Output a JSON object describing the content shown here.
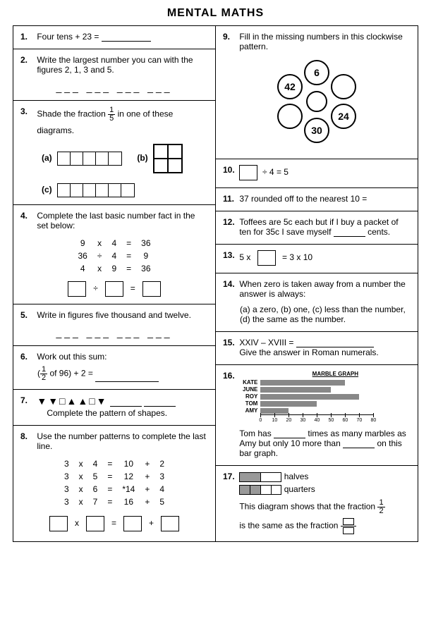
{
  "title": "MENTAL MATHS",
  "q1": {
    "num": "1.",
    "text": "Four tens + 23 ="
  },
  "q2": {
    "num": "2.",
    "text": "Write the largest number you can with the figures 2, 1, 3 and 5."
  },
  "q3": {
    "num": "3.",
    "part1": "Shade the fraction",
    "frac_num": "1",
    "frac_den": "5",
    "part2": "in one of these",
    "part3": "diagrams.",
    "a": "(a)",
    "b": "(b)",
    "c": "(c)"
  },
  "q4": {
    "num": "4.",
    "text": "Complete the last basic number fact in the set below:",
    "r1": [
      "9",
      "x",
      "4",
      "=",
      "36"
    ],
    "r2": [
      "36",
      "÷",
      "4",
      "=",
      "9"
    ],
    "r3": [
      "4",
      "x",
      "9",
      "=",
      "36"
    ]
  },
  "q5": {
    "num": "5.",
    "text": "Write in figures five thousand and twelve."
  },
  "q6": {
    "num": "6.",
    "text": "Work out this sum:",
    "expr_open": "(",
    "frac_num": "1",
    "frac_den": "2",
    "expr_mid": " of 96) + 2  ="
  },
  "q7": {
    "num": "7.",
    "shapes": "▼▼□▲▲□▼",
    "text": "Complete the pattern of shapes."
  },
  "q8": {
    "num": "8.",
    "text": "Use the number patterns to complete the last line.",
    "rows": [
      [
        "3",
        "x",
        "4",
        "=",
        "10",
        "+",
        "2"
      ],
      [
        "3",
        "x",
        "5",
        "=",
        "12",
        "+",
        "3"
      ],
      [
        "3",
        "x",
        "6",
        "=",
        "*14",
        "+",
        "4"
      ],
      [
        "3",
        "x",
        "7",
        "=",
        "16",
        "+",
        "5"
      ]
    ]
  },
  "q9": {
    "num": "9.",
    "text": "Fill in the missing numbers in this clockwise pattern.",
    "vals": [
      "6",
      "42",
      "30",
      "24"
    ]
  },
  "q10": {
    "num": "10.",
    "text": "÷ 4 = 5"
  },
  "q11": {
    "num": "11.",
    "text": "37 rounded off to the nearest 10 ="
  },
  "q12": {
    "num": "12.",
    "text": "Toffees are 5c each but if I buy a packet of ten for 35c I save myself",
    "text2": "cents."
  },
  "q13": {
    "num": "13.",
    "left": "5  x",
    "right": "=  3  x  10"
  },
  "q14": {
    "num": "14.",
    "text": "When zero is taken away from a number the answer is always:",
    "opts": "(a)  a zero,   (b)  one,   (c)  less than the number,   (d)  the same as the number."
  },
  "q15": {
    "num": "15.",
    "text": "XXIV – XVIII =",
    "sub": "Give the answer in Roman numerals."
  },
  "q16": {
    "num": "16.",
    "title": "MARBLE GRAPH",
    "series": [
      {
        "label": "KATE",
        "value": 60
      },
      {
        "label": "JUNE",
        "value": 50
      },
      {
        "label": "ROY",
        "value": 70
      },
      {
        "label": "TOM",
        "value": 40
      },
      {
        "label": "AMY",
        "value": 20
      }
    ],
    "ticks": [
      0,
      10,
      20,
      30,
      40,
      50,
      60,
      70,
      80
    ],
    "t1": "Tom has",
    "t2": "times as many marbles as Amy but only 10 more than",
    "t3": "on this bar graph."
  },
  "q17": {
    "num": "17.",
    "halves": "halves",
    "quarters": "quarters",
    "t1": "This diagram shows that the fraction",
    "frac_num": "1",
    "frac_den": "2",
    "t2": "is the same as the fraction"
  }
}
